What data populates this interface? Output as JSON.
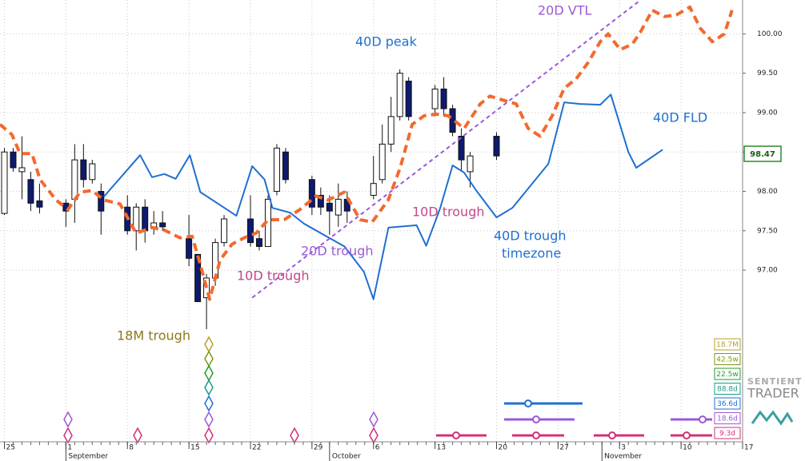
{
  "chart_data": {
    "type": "candlestick",
    "xlim": [
      -0.5,
      84
    ],
    "ylim": [
      94.82,
      100.43
    ],
    "yticks": [
      {
        "value": 97,
        "label": "97.00"
      },
      {
        "value": 97.5,
        "label": "97.50"
      },
      {
        "value": 98,
        "label": "98.00"
      },
      {
        "value": 98.5,
        "label": "98.50"
      },
      {
        "value": 99,
        "label": "99.00"
      },
      {
        "value": 99.5,
        "label": "99.50"
      },
      {
        "value": 100,
        "label": "100.00"
      }
    ],
    "xticks": [
      {
        "value": 0,
        "label": "25"
      },
      {
        "value": 7,
        "label": "1"
      },
      {
        "value": 14,
        "label": "8"
      },
      {
        "value": 21,
        "label": "15"
      },
      {
        "value": 28,
        "label": "22"
      },
      {
        "value": 35,
        "label": "29"
      },
      {
        "value": 42,
        "label": "6"
      },
      {
        "value": 49,
        "label": "13"
      },
      {
        "value": 56,
        "label": "20"
      },
      {
        "value": 63,
        "label": "27"
      },
      {
        "value": 70,
        "label": "3"
      },
      {
        "value": 77,
        "label": "10"
      },
      {
        "value": 84,
        "label": "17"
      }
    ],
    "month_labels": [
      {
        "value": 7,
        "label": "September"
      },
      {
        "value": 37,
        "label": "October"
      },
      {
        "value": 68,
        "label": "November"
      }
    ],
    "grid": true,
    "candles": {
      "x": [
        0,
        1,
        2,
        3,
        4,
        7,
        8,
        9,
        10,
        11,
        14,
        15,
        16,
        17,
        18,
        21,
        22,
        23,
        24,
        25,
        28,
        29,
        30,
        31,
        32,
        35,
        36,
        37,
        38,
        39,
        42,
        43,
        44,
        45,
        46,
        49,
        50,
        51,
        52,
        53,
        56
      ],
      "open": [
        97.72,
        98.5,
        98.25,
        98.15,
        97.88,
        97.85,
        97.9,
        98.4,
        98.15,
        98.0,
        97.8,
        97.5,
        97.8,
        97.55,
        97.6,
        97.4,
        97.2,
        96.65,
        96.9,
        97.35,
        97.65,
        97.4,
        97.3,
        98.0,
        98.5,
        98.15,
        97.95,
        97.85,
        97.7,
        97.9,
        97.95,
        98.15,
        98.6,
        98.95,
        99.4,
        99.05,
        99.3,
        99.05,
        98.7,
        98.25,
        98.7
      ],
      "high": [
        98.55,
        98.55,
        98.7,
        98.25,
        98.1,
        97.9,
        98.6,
        98.6,
        98.4,
        98.1,
        97.95,
        97.85,
        97.9,
        97.75,
        97.75,
        97.7,
        97.2,
        96.95,
        97.4,
        97.7,
        97.95,
        97.5,
        97.95,
        98.6,
        98.55,
        98.2,
        98.05,
        97.95,
        98.1,
        98.0,
        98.45,
        98.85,
        99.2,
        99.55,
        99.45,
        99.35,
        99.45,
        99.1,
        98.8,
        98.5,
        98.75
      ],
      "low": [
        97.7,
        98.25,
        97.9,
        97.75,
        97.72,
        97.55,
        97.6,
        98.05,
        98.1,
        97.45,
        97.45,
        97.25,
        97.35,
        97.45,
        97.5,
        97.05,
        96.6,
        96.25,
        96.8,
        97.3,
        97.3,
        97.25,
        97.3,
        97.95,
        98.1,
        97.7,
        97.7,
        97.45,
        97.55,
        97.6,
        97.9,
        98.1,
        98.5,
        98.9,
        98.9,
        98.95,
        98.95,
        98.7,
        98.25,
        98.05,
        98.4
      ],
      "close": [
        98.5,
        98.3,
        98.3,
        97.85,
        97.8,
        97.75,
        98.4,
        98.15,
        98.35,
        97.75,
        97.5,
        97.8,
        97.5,
        97.6,
        97.55,
        97.15,
        96.6,
        96.9,
        97.35,
        97.65,
        97.35,
        97.3,
        97.9,
        98.55,
        98.15,
        97.8,
        97.8,
        97.75,
        97.9,
        97.75,
        98.1,
        98.6,
        98.95,
        99.5,
        98.95,
        99.3,
        99.05,
        98.75,
        98.4,
        98.45,
        98.45
      ],
      "up_color": "#ffffff",
      "down_color": "#0d1a6e"
    },
    "lines": [
      {
        "name": "40D FLD",
        "color": "#1f6fd1",
        "dashed": false,
        "x": [
          11.3,
          15.44,
          16.8,
          18.2,
          19.5,
          21.1,
          22.3,
          24.5,
          26.4,
          28.2,
          29.6,
          30.5,
          32.5,
          34.1,
          38.7,
          40.9,
          42.0,
          43.7,
          46.9,
          48.0,
          49.6,
          51.0,
          52.3,
          53.7,
          56.0,
          57.8,
          61.9,
          63.7,
          65.5,
          67.8,
          69.0,
          71.0,
          71.9,
          74.9
        ],
        "values": [
          97.93,
          98.46,
          98.18,
          98.22,
          98.16,
          98.46,
          97.99,
          97.83,
          97.69,
          98.32,
          98.15,
          97.79,
          97.73,
          97.59,
          97.3,
          96.98,
          96.63,
          97.54,
          97.57,
          97.31,
          97.79,
          98.33,
          98.24,
          98.01,
          97.67,
          97.79,
          98.35,
          99.13,
          99.11,
          99.1,
          99.23,
          98.5,
          98.3,
          98.53
        ]
      },
      {
        "color": "#f26a2e",
        "dashed": true,
        "x": [
          -0.5,
          0.87,
          1.78,
          3.14,
          4.05,
          5.88,
          7.24,
          8.6,
          9.97,
          11.34,
          13.16,
          14.98,
          16.8,
          18.17,
          19.99,
          21.36,
          22.27,
          23.36,
          24.55,
          25.91,
          27.28,
          28.64,
          30.01,
          31.83,
          33.65,
          35.47,
          36.84,
          38.66,
          40.48,
          41.85,
          43.67,
          45.04,
          46.4,
          47.77,
          49.14,
          50.5,
          52.32,
          54.14,
          55.24,
          56.7,
          58.24,
          59.6,
          60.97,
          62.34,
          63.7,
          65.07,
          66.44,
          67.8,
          68.7,
          70.08,
          71.45,
          72.36,
          73.73,
          75.09,
          76.46,
          78.0,
          79.19,
          80.56,
          81.92,
          82.8
        ],
        "values": [
          98.85,
          98.72,
          98.48,
          98.48,
          98.15,
          97.89,
          97.77,
          97.99,
          98.01,
          97.89,
          97.84,
          97.47,
          97.54,
          97.51,
          97.41,
          97.43,
          97.08,
          96.63,
          97.13,
          97.33,
          97.41,
          97.47,
          97.64,
          97.64,
          97.77,
          97.94,
          97.89,
          97.99,
          97.64,
          97.61,
          97.89,
          98.3,
          98.85,
          98.96,
          98.98,
          98.96,
          98.8,
          99.11,
          99.21,
          99.16,
          99.11,
          98.8,
          98.7,
          98.96,
          99.31,
          99.43,
          99.64,
          99.9,
          100.0,
          99.8,
          99.87,
          100.02,
          100.3,
          100.22,
          100.24,
          100.34,
          100.07,
          99.9,
          100.0,
          100.3
        ]
      },
      {
        "name": "20D VTL",
        "color": "#9b59d6",
        "dashed": true,
        "x": [
          28.2,
          72.4
        ],
        "values": [
          96.65,
          100.43
        ]
      }
    ],
    "annotations": [
      {
        "text": "40D peak",
        "color": "#1f6fd1"
      },
      {
        "text": "10D trough",
        "color": "#c0488a"
      },
      {
        "text": "40D trough",
        "color": "#1f6fd1"
      },
      {
        "text": "timezone",
        "color": "#1f6fd1"
      },
      {
        "text": "20D trough",
        "color": "#9b59d6"
      },
      {
        "text": "10D trough",
        "color": "#c0488a"
      },
      {
        "text": "18M trough",
        "color": "#8a7a1c"
      }
    ],
    "last_price": 98.47,
    "cycles": [
      {
        "label": "18.7M",
        "color": "#b5a228"
      },
      {
        "label": "42.5w",
        "color": "#7a9a10"
      },
      {
        "label": "22.5w",
        "color": "#2a9a2a"
      },
      {
        "label": "88.8d",
        "color": "#1a9a8a"
      },
      {
        "label": "36.6d",
        "color": "#1f6fd1"
      },
      {
        "label": "18.6d",
        "color": "#9b59d6"
      },
      {
        "label": "9.3d",
        "color": "#d0307a"
      }
    ],
    "logo": [
      "SENTIENT",
      "TRADER"
    ]
  }
}
